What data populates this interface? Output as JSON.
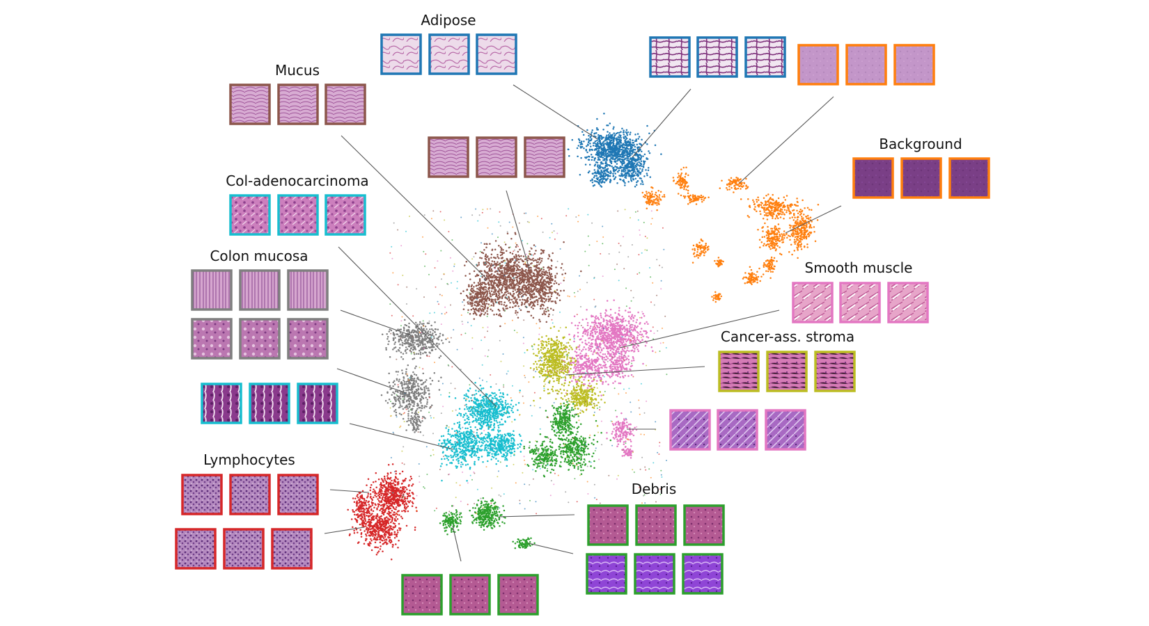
{
  "figure": {
    "classes": [
      {
        "id": "adipose",
        "label": "Adipose",
        "color": "#1f77b4"
      },
      {
        "id": "background",
        "label": "Background",
        "color": "#ff7f0e"
      },
      {
        "id": "debris",
        "label": "Debris",
        "color": "#2ca02c"
      },
      {
        "id": "lymphocytes",
        "label": "Lymphocytes",
        "color": "#d62728"
      },
      {
        "id": "mucus",
        "label": "Mucus",
        "color": "#8c564b"
      },
      {
        "id": "smooth-muscle",
        "label": "Smooth muscle",
        "color": "#e377c2"
      },
      {
        "id": "colon-mucosa",
        "label": "Colon mucosa",
        "color": "#7f7f7f"
      },
      {
        "id": "cancer-stroma",
        "label": "Cancer-ass. stroma",
        "color": "#bcbd22"
      },
      {
        "id": "col-adenocarcinoma",
        "label": "Col-adenocarcinoma",
        "color": "#17becf"
      }
    ],
    "tile_colors": {
      "adipose": "#ecdcea",
      "background": "#c396c9",
      "background_dark": "#7a3f86",
      "mucus": "#d4a5cf",
      "col-adenocarcinoma": "#c46fb3",
      "colon-mucosa": "#cf9ac8",
      "lymphocytes": "#a06cb0",
      "smooth-muscle": "#e6a3c8",
      "cancer-stroma": "#d67cb8",
      "debris": "#b0568f",
      "debris_purple": "#8f45d8"
    }
  }
}
